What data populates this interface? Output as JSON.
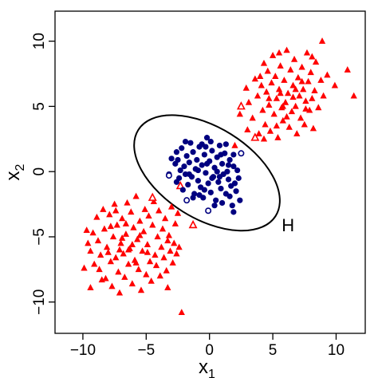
{
  "chart_data": {
    "type": "scatter",
    "title": "",
    "xlabel": {
      "base": "x",
      "sub": "1"
    },
    "ylabel": {
      "base": "x",
      "sub": "2"
    },
    "xlim": [
      -12.2,
      12.3
    ],
    "ylim": [
      -12.4,
      12.3
    ],
    "xticks": [
      -10,
      -5,
      0,
      5,
      10
    ],
    "yticks": [
      -10,
      -5,
      0,
      5,
      10
    ],
    "xtick_labels": [
      "−10",
      "−5",
      "0",
      "5",
      "10"
    ],
    "ytick_labels": [
      "−10",
      "−5",
      "0",
      "5",
      "10"
    ],
    "grid": false,
    "colors": {
      "triangles": "#ff0000",
      "circles": "#000080",
      "ellipse": "#000000"
    },
    "annotation": {
      "text": "H",
      "x": 5.7,
      "y": -4.1
    },
    "ellipse": {
      "cx": -0.2,
      "cy": -0.1,
      "semi_major": 6.4,
      "semi_minor": 3.6,
      "angle_deg": -32
    },
    "series": [
      {
        "marker": "filled-triangle",
        "color": "#ff0000",
        "points": [
          [
            -9.7,
            -4.5
          ],
          [
            -9.6,
            -5.5
          ],
          [
            -9.4,
            -6.1
          ],
          [
            -9.2,
            -4.7
          ],
          [
            -9.1,
            -7.1
          ],
          [
            -9.9,
            -7.4
          ],
          [
            -8.9,
            -3.5
          ],
          [
            -8.8,
            -5.3
          ],
          [
            -8.7,
            -7.5
          ],
          [
            -8.6,
            -6.4
          ],
          [
            -8.4,
            -2.9
          ],
          [
            -8.3,
            -4.4
          ],
          [
            -8.2,
            -8.2
          ],
          [
            -8.1,
            -5.8
          ],
          [
            -7.9,
            -3.3
          ],
          [
            -7.8,
            -6.9
          ],
          [
            -7.7,
            -8.8
          ],
          [
            -7.6,
            -5.0
          ],
          [
            -7.5,
            -2.5
          ],
          [
            -7.4,
            -6.6
          ],
          [
            -7.3,
            -4.1
          ],
          [
            -7.2,
            -7.7
          ],
          [
            -7.1,
            -9.3
          ],
          [
            -7.0,
            -5.5
          ],
          [
            -6.9,
            -3.6
          ],
          [
            -6.8,
            -6.3
          ],
          [
            -6.7,
            -8.1
          ],
          [
            -6.6,
            -4.8
          ],
          [
            -6.5,
            -2.4
          ],
          [
            -6.4,
            -7.1
          ],
          [
            -6.3,
            -5.9
          ],
          [
            -6.2,
            -3.1
          ],
          [
            -6.1,
            -8.6
          ],
          [
            -6.0,
            -4.3
          ],
          [
            -5.9,
            -6.8
          ],
          [
            -5.8,
            -1.9
          ],
          [
            -5.7,
            -5.2
          ],
          [
            -5.6,
            -7.5
          ],
          [
            -5.5,
            -3.8
          ],
          [
            -5.4,
            -9.1
          ],
          [
            -5.3,
            -6.1
          ],
          [
            -5.2,
            -4.6
          ],
          [
            -5.1,
            -2.9
          ],
          [
            -5.0,
            -7.9
          ],
          [
            -4.9,
            -5.6
          ],
          [
            -4.8,
            -3.4
          ],
          [
            -4.7,
            -6.9
          ],
          [
            -4.6,
            -8.4
          ],
          [
            -4.5,
            -4.1
          ],
          [
            -4.4,
            -2.3
          ],
          [
            -4.3,
            -6.4
          ],
          [
            -4.2,
            -7.2
          ],
          [
            -4.1,
            -5.0
          ],
          [
            -4.0,
            -3.0
          ],
          [
            -3.9,
            -8.0
          ],
          [
            -3.8,
            -5.8
          ],
          [
            -3.7,
            -4.4
          ],
          [
            -3.6,
            -6.6
          ],
          [
            -3.5,
            -3.6
          ],
          [
            -3.4,
            -7.6
          ],
          [
            -3.3,
            -5.3
          ],
          [
            -3.2,
            -4.9
          ],
          [
            -3.1,
            -6.1
          ],
          [
            -3.0,
            -2.7
          ],
          [
            -2.9,
            -7.0
          ],
          [
            -2.8,
            -5.5
          ],
          [
            -2.7,
            -4.0
          ],
          [
            -2.6,
            -6.3
          ],
          [
            -2.5,
            -3.2
          ],
          [
            -2.4,
            -5.8
          ],
          [
            -2.2,
            -10.8
          ],
          [
            -7.8,
            -4.2
          ],
          [
            -6.9,
            -5.1
          ],
          [
            -6.1,
            -5.6
          ],
          [
            -5.5,
            -4.9
          ],
          [
            -7.1,
            -6.0
          ],
          [
            -8.0,
            -6.2
          ],
          [
            -6.4,
            -6.0
          ],
          [
            -5.8,
            -7.0
          ],
          [
            -4.9,
            -6.2
          ],
          [
            -7.4,
            -3.0
          ],
          [
            -6.6,
            -4.0
          ],
          [
            -3.3,
            -8.9
          ],
          [
            -8.5,
            -8.3
          ],
          [
            -9.4,
            -8.9
          ],
          [
            2.0,
            2.0
          ],
          [
            2.4,
            4.4
          ],
          [
            2.9,
            6.4
          ],
          [
            3.1,
            5.3
          ],
          [
            3.4,
            4.1
          ],
          [
            3.6,
            7.1
          ],
          [
            3.8,
            5.8
          ],
          [
            3.9,
            2.9
          ],
          [
            4.1,
            6.6
          ],
          [
            4.2,
            4.7
          ],
          [
            4.3,
            8.3
          ],
          [
            4.4,
            3.6
          ],
          [
            4.5,
            6.1
          ],
          [
            4.6,
            7.7
          ],
          [
            4.7,
            5.1
          ],
          [
            4.8,
            3.1
          ],
          [
            4.9,
            6.8
          ],
          [
            5.0,
            8.9
          ],
          [
            5.1,
            4.4
          ],
          [
            5.2,
            7.3
          ],
          [
            5.3,
            5.6
          ],
          [
            5.4,
            2.6
          ],
          [
            5.5,
            6.3
          ],
          [
            5.6,
            8.1
          ],
          [
            5.7,
            4.9
          ],
          [
            5.8,
            3.9
          ],
          [
            5.9,
            7.0
          ],
          [
            6.0,
            5.3
          ],
          [
            6.1,
            9.3
          ],
          [
            6.2,
            6.0
          ],
          [
            6.3,
            3.4
          ],
          [
            6.4,
            7.8
          ],
          [
            6.5,
            4.6
          ],
          [
            6.6,
            6.6
          ],
          [
            6.7,
            8.6
          ],
          [
            6.8,
            5.0
          ],
          [
            6.9,
            2.9
          ],
          [
            7.0,
            7.2
          ],
          [
            7.1,
            5.8
          ],
          [
            7.2,
            4.1
          ],
          [
            7.3,
            8.0
          ],
          [
            7.4,
            6.3
          ],
          [
            7.5,
            3.6
          ],
          [
            7.6,
            5.4
          ],
          [
            7.7,
            9.1
          ],
          [
            7.8,
            6.9
          ],
          [
            7.9,
            4.7
          ],
          [
            8.0,
            7.6
          ],
          [
            8.1,
            5.6
          ],
          [
            8.2,
            3.3
          ],
          [
            8.3,
            6.2
          ],
          [
            8.4,
            8.4
          ],
          [
            8.6,
            4.9
          ],
          [
            8.8,
            7.0
          ],
          [
            8.9,
            10.0
          ],
          [
            9.0,
            5.8
          ],
          [
            9.3,
            7.4
          ],
          [
            10.9,
            7.8
          ],
          [
            11.4,
            5.8
          ],
          [
            9.9,
            6.6
          ],
          [
            5.6,
            6.0
          ],
          [
            6.6,
            5.7
          ],
          [
            7.3,
            6.9
          ],
          [
            5.8,
            5.0
          ],
          [
            6.8,
            6.3
          ],
          [
            4.7,
            5.6
          ],
          [
            6.1,
            4.2
          ],
          [
            7.6,
            4.8
          ],
          [
            5.5,
            9.1
          ],
          [
            4.0,
            7.3
          ],
          [
            3.0,
            3.2
          ],
          [
            4.3,
            2.5
          ],
          [
            5.3,
            3.5
          ],
          [
            8.1,
            8.8
          ]
        ]
      },
      {
        "marker": "open-triangle",
        "color": "#ff0000",
        "points": [
          [
            -4.5,
            -2.0
          ],
          [
            -2.3,
            -1.1
          ],
          [
            -1.3,
            -4.1
          ],
          [
            2.5,
            5.0
          ],
          [
            3.6,
            2.6
          ]
        ]
      },
      {
        "marker": "filled-circle",
        "color": "#000080",
        "points": [
          [
            -3.2,
            -0.2
          ],
          [
            -3.0,
            1.0
          ],
          [
            -2.7,
            0.6
          ],
          [
            -2.6,
            -0.8
          ],
          [
            -2.5,
            0.9
          ],
          [
            -2.4,
            -0.5
          ],
          [
            -2.3,
            0.1
          ],
          [
            -2.2,
            1.8
          ],
          [
            -2.1,
            -1.4
          ],
          [
            -2.0,
            0.4
          ],
          [
            -1.9,
            -0.2
          ],
          [
            -1.8,
            1.2
          ],
          [
            -1.7,
            -1.0
          ],
          [
            -1.6,
            0.7
          ],
          [
            -1.5,
            2.2
          ],
          [
            -1.4,
            -0.4
          ],
          [
            -1.3,
            1.5
          ],
          [
            -1.2,
            -1.7
          ],
          [
            -1.1,
            0.2
          ],
          [
            -1.0,
            0.9
          ],
          [
            -0.9,
            -0.7
          ],
          [
            -0.8,
            1.9
          ],
          [
            -0.7,
            -1.2
          ],
          [
            -0.6,
            0.5
          ],
          [
            -0.5,
            -2.0
          ],
          [
            -0.4,
            1.3
          ],
          [
            -0.3,
            -0.1
          ],
          [
            -0.2,
            2.6
          ],
          [
            -0.1,
            -0.9
          ],
          [
            0.0,
            0.8
          ],
          [
            0.1,
            -1.6
          ],
          [
            0.2,
            1.6
          ],
          [
            0.3,
            -0.4
          ],
          [
            0.4,
            0.3
          ],
          [
            0.5,
            -2.2
          ],
          [
            0.6,
            1.1
          ],
          [
            0.7,
            -0.8
          ],
          [
            0.8,
            2.0
          ],
          [
            0.9,
            -1.3
          ],
          [
            1.0,
            0.6
          ],
          [
            1.1,
            -0.2
          ],
          [
            1.2,
            1.4
          ],
          [
            1.3,
            -1.7
          ],
          [
            1.4,
            0.0
          ],
          [
            1.5,
            -0.6
          ],
          [
            1.6,
            0.9
          ],
          [
            1.7,
            -1.1
          ],
          [
            1.8,
            -2.6
          ],
          [
            1.9,
            0.4
          ],
          [
            2.0,
            -0.9
          ],
          [
            2.1,
            -1.5
          ],
          [
            2.2,
            0.1
          ],
          [
            2.3,
            -0.5
          ],
          [
            2.4,
            -2.2
          ],
          [
            1.9,
            -3.1
          ],
          [
            -0.6,
            2.1
          ],
          [
            -1.9,
            2.3
          ],
          [
            1.6,
            -1.9
          ],
          [
            0.9,
            1.3
          ],
          [
            -0.4,
            -1.4
          ],
          [
            0.4,
            -2.6
          ],
          [
            -1.3,
            -2.0
          ],
          [
            1.3,
            2.1
          ],
          [
            -0.9,
            0.1
          ],
          [
            0.6,
            0.0
          ],
          [
            -0.2,
            0.6
          ],
          [
            0.2,
            -0.5
          ],
          [
            -1.6,
            -0.2
          ],
          [
            0.8,
            -0.4
          ],
          [
            -0.3,
            1.9
          ],
          [
            1.5,
            0.5
          ],
          [
            -0.8,
            -1.8
          ],
          [
            0.1,
            2.3
          ],
          [
            -2.6,
            1.5
          ],
          [
            1.0,
            -2.4
          ],
          [
            1.9,
            1.3
          ]
        ]
      },
      {
        "marker": "open-circle",
        "color": "#000080",
        "points": [
          [
            -3.2,
            -0.3
          ],
          [
            -1.8,
            -2.2
          ],
          [
            -0.1,
            -3.0
          ],
          [
            2.5,
            1.4
          ]
        ]
      }
    ]
  }
}
